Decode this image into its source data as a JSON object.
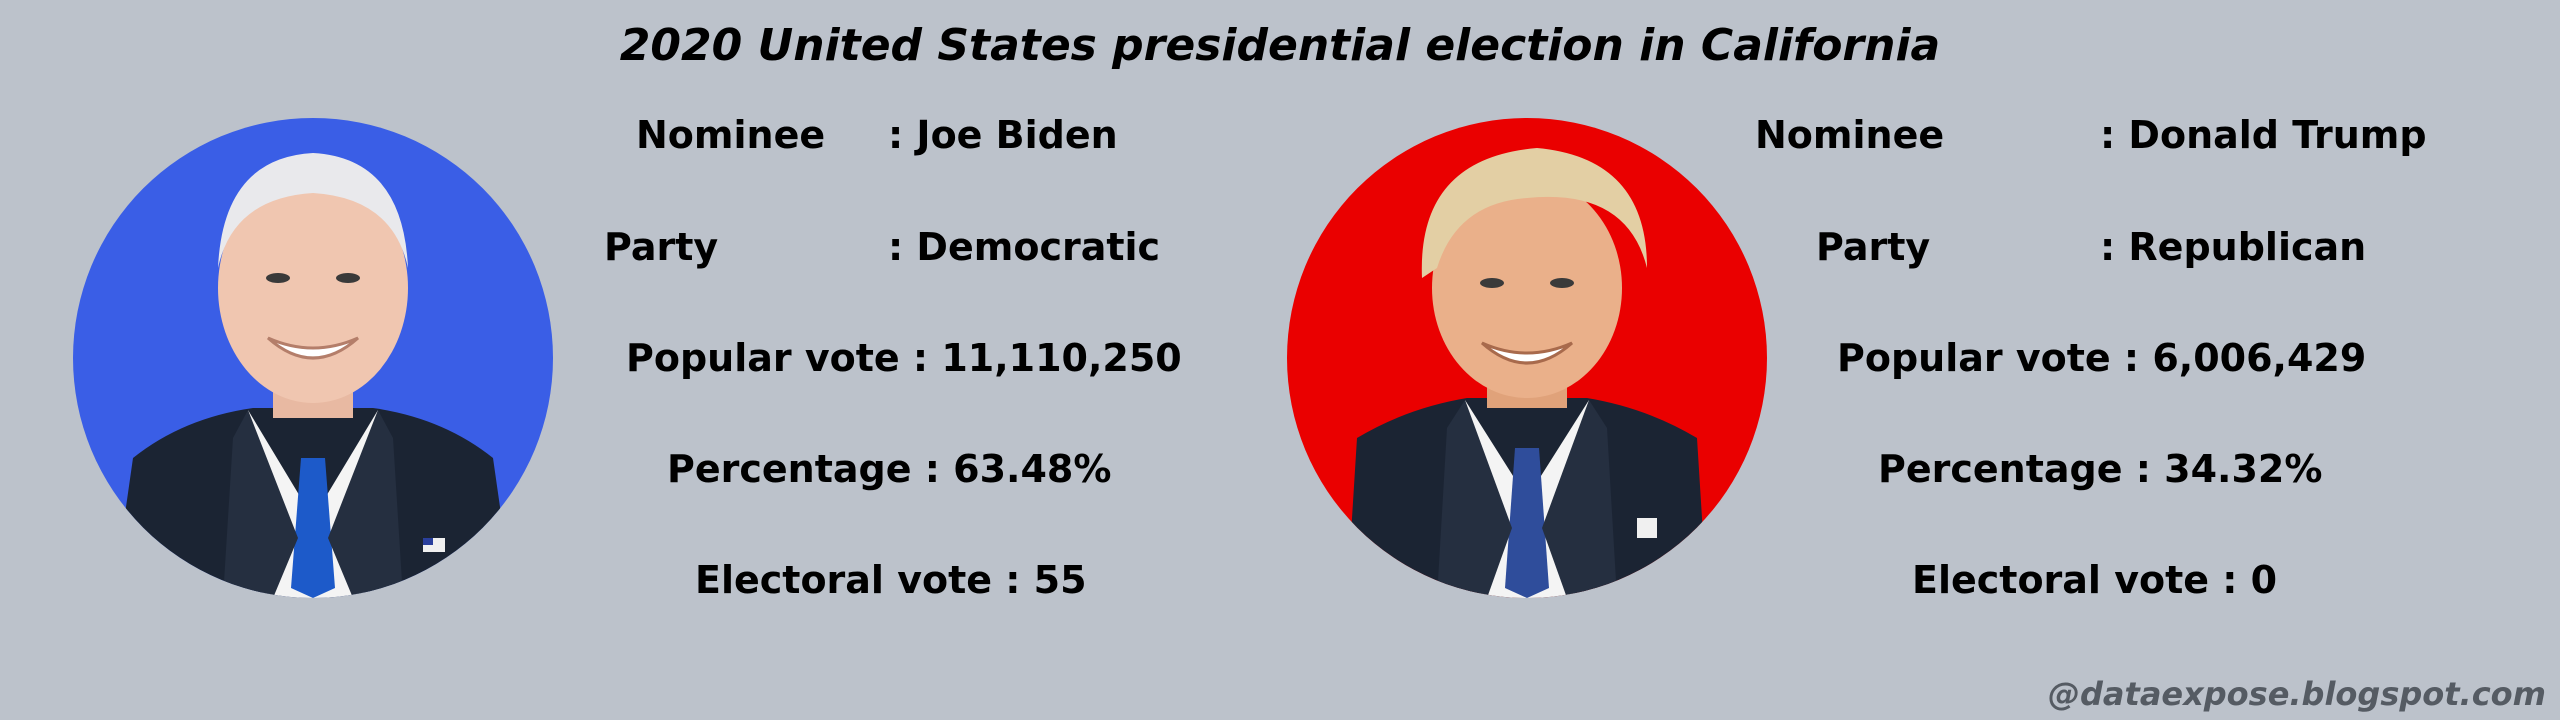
{
  "title": "2020 United States presidential election in California",
  "candidates": [
    {
      "image_desc": "portrait-biden",
      "background_color": "#3a5ee6",
      "nominee_label": "Nominee",
      "nominee_value": ": Joe Biden",
      "party_label": "Party",
      "party_value": ": Democratic",
      "popular_vote_line": "Popular vote : 11,110,250",
      "percentage_line": "Percentage : 63.48%",
      "electoral_vote_line": "Electoral vote : 55"
    },
    {
      "image_desc": "portrait-trump",
      "background_color": "#ea0000",
      "nominee_label": "Nominee",
      "nominee_value": ": Donald Trump",
      "party_label": "Party",
      "party_value": ": Republican",
      "popular_vote_line": "Popular vote : 6,006,429",
      "percentage_line": "Percentage : 34.32%",
      "electoral_vote_line": "Electoral vote : 0"
    }
  ],
  "footer": "@dataexpose.blogspot.com"
}
